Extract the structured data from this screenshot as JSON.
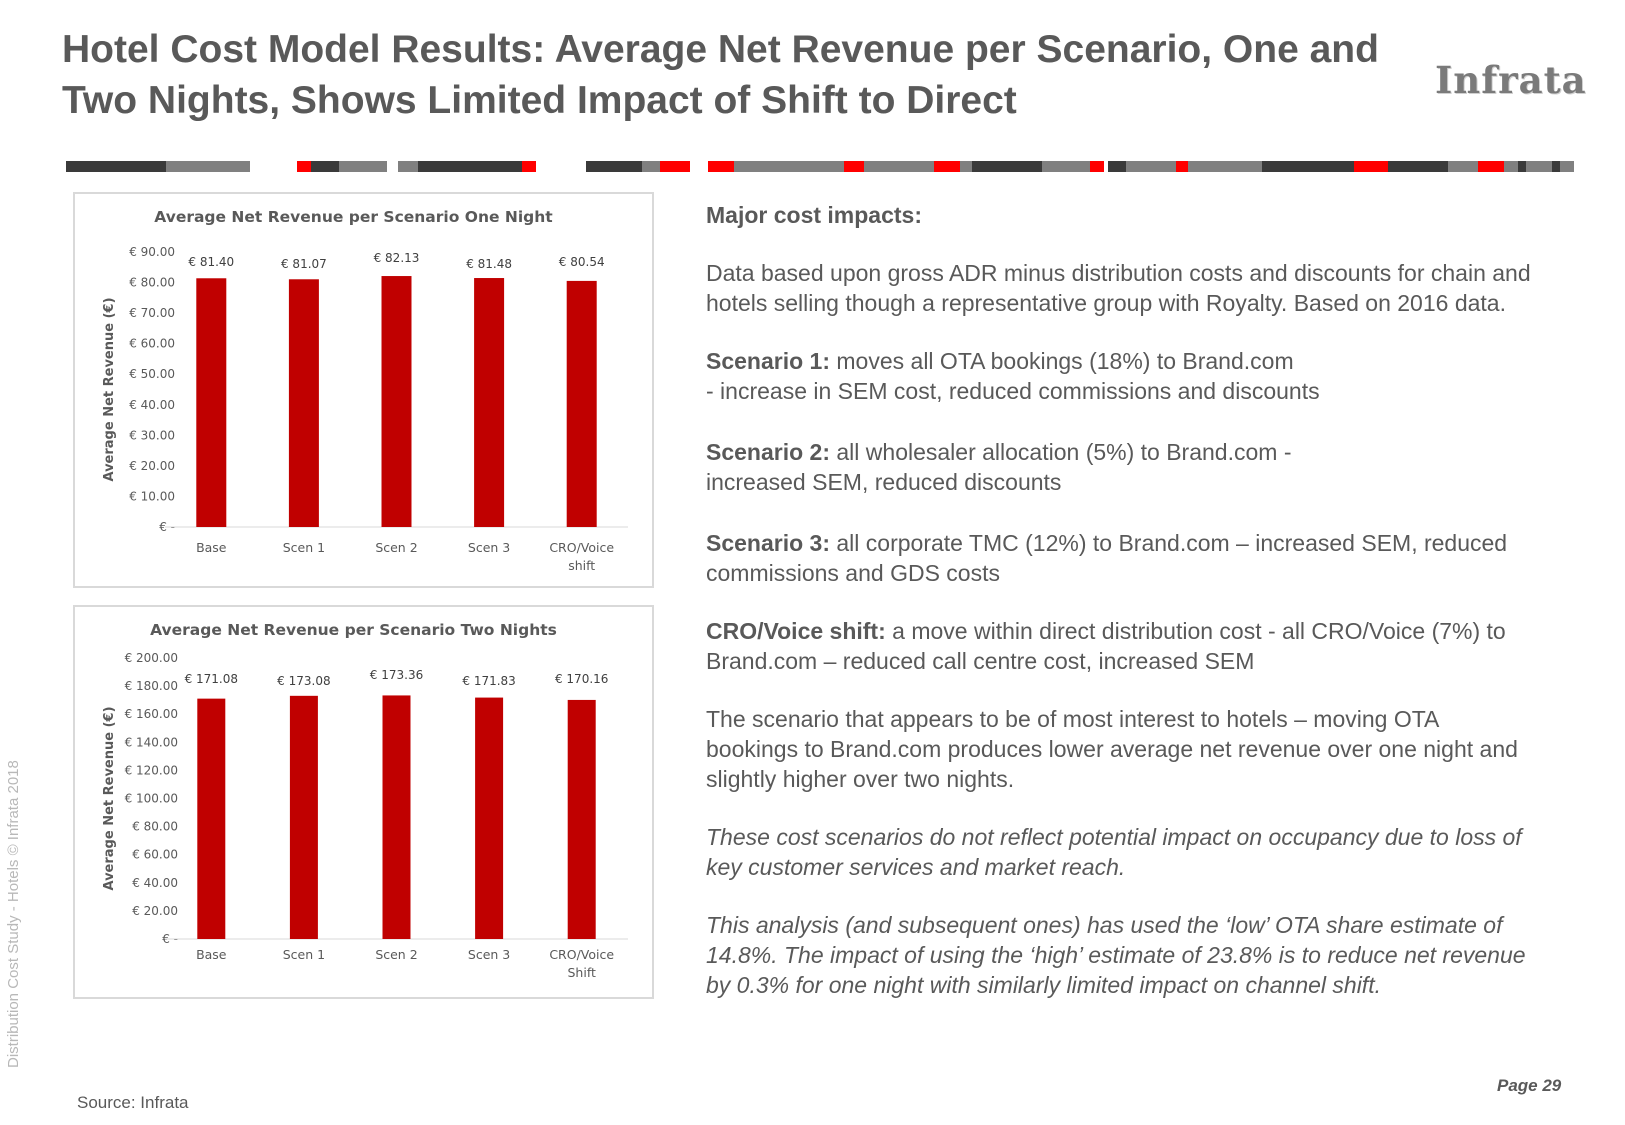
{
  "title": "Hotel Cost Model Results: Average Net Revenue per Scenario, One and Two Nights, Shows Limited Impact of Shift to Direct",
  "brand": "Infrata",
  "side_text": "Distribution Cost Study - Hotels © Infrata 2018",
  "source": "Source: Infrata",
  "page": "Page 29",
  "colors": {
    "bar": "#c00000",
    "text": "#595959",
    "stripe_dark": "#3a3a3a",
    "stripe_grey": "#808080",
    "stripe_red": "#ff0000"
  },
  "panel": {
    "heading": "Major cost impacts:",
    "intro": "Data based upon gross ADR minus distribution costs and discounts for chain and hotels selling though a representative group with Royalty. Based on 2016 data.",
    "s1_label": "Scenario 1:",
    "s1_text": " moves all OTA bookings (18%) to Brand.com",
    "s1_line2": "-  increase in SEM cost, reduced commissions and discounts",
    "s2_label": "Scenario 2:",
    "s2_text": " all wholesaler allocation (5%) to Brand.com -",
    "s2_line2": " increased SEM, reduced discounts",
    "s3_label": "Scenario 3:",
    "s3_text": " all corporate TMC (12%) to Brand.com – increased SEM, reduced commissions and GDS costs",
    "cro_label": "CRO/Voice shift:",
    "cro_text": " a move within direct distribution cost - all CRO/Voice (7%) to Brand.com – reduced call centre cost, increased SEM",
    "conclusion": "The scenario that appears to be of most interest to hotels – moving OTA bookings to Brand.com produces lower average net revenue over one night and slightly higher over two nights.",
    "note1": "These cost scenarios do not reflect potential impact on occupancy due to loss of key customer services and market reach.",
    "note2": "This analysis (and subsequent ones) has used the ‘low’ OTA share estimate of 14.8%.  The impact of using the ‘high’ estimate of 23.8% is to reduce net revenue by 0.3% for one night with similarly limited impact on channel shift."
  },
  "chart_data": [
    {
      "type": "bar",
      "title": "Average Net Revenue per Scenario One Night",
      "ylabel": "Average Net Revenue (€)",
      "categories": [
        [
          "Base"
        ],
        [
          "Scen 1"
        ],
        [
          "Scen 2"
        ],
        [
          "Scen 3"
        ],
        [
          "CRO/Voice",
          "shift"
        ]
      ],
      "values": [
        81.4,
        81.07,
        82.13,
        81.48,
        80.54
      ],
      "value_labels": [
        "€ 81.40",
        "€ 81.07",
        "€ 82.13",
        "€ 81.48",
        "€ 80.54"
      ],
      "yticks": [
        "€ -",
        "€ 10.00",
        "€ 20.00",
        "€ 30.00",
        "€ 40.00",
        "€ 50.00",
        "€ 60.00",
        "€ 70.00",
        "€ 80.00",
        "€ 90.00"
      ],
      "ylim": [
        0,
        90
      ],
      "grid": false,
      "legend": "none"
    },
    {
      "type": "bar",
      "title": "Average Net Revenue per Scenario Two Nights",
      "ylabel": "Average Net Revenue (€)",
      "categories": [
        [
          "Base"
        ],
        [
          "Scen 1"
        ],
        [
          "Scen 2"
        ],
        [
          "Scen 3"
        ],
        [
          "CRO/Voice",
          "Shift"
        ]
      ],
      "values": [
        171.08,
        173.08,
        173.36,
        171.83,
        170.16
      ],
      "value_labels": [
        "€ 171.08",
        "€ 173.08",
        "€ 173.36",
        "€ 171.83",
        "€ 170.16"
      ],
      "yticks": [
        "€ -",
        "€ 20.00",
        "€ 40.00",
        "€ 60.00",
        "€ 80.00",
        "€ 100.00",
        "€ 120.00",
        "€ 140.00",
        "€ 160.00",
        "€ 180.00",
        "€ 200.00"
      ],
      "ylim": [
        0,
        200
      ],
      "grid": false,
      "legend": "none"
    }
  ]
}
